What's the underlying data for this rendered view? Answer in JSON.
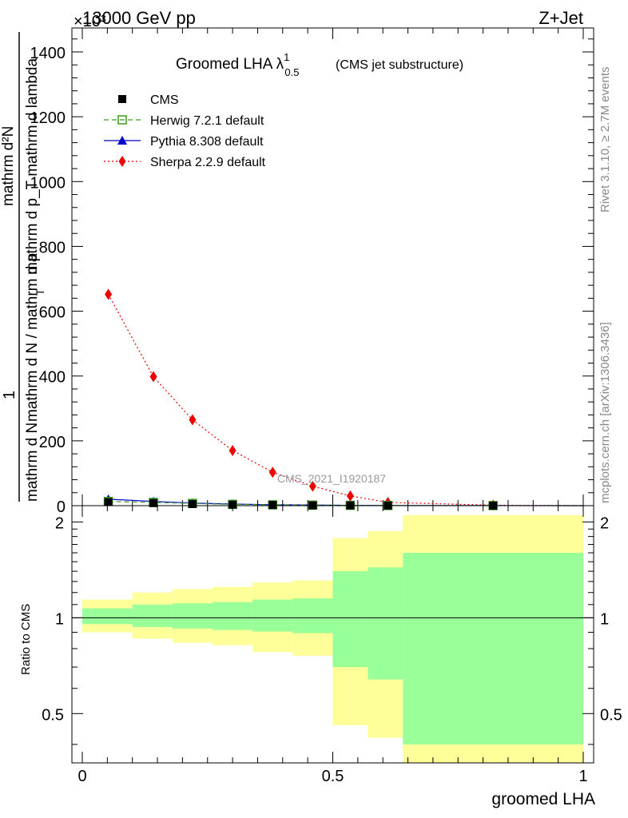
{
  "header": {
    "left_label": "13000 GeV pp",
    "right_label": "Z+Jet",
    "exponent_label": "×10³"
  },
  "side_labels": {
    "rivet": "Rivet 3.1.10, ≥ 2.7M events",
    "mcplots": "mcplots.cern.ch [arXiv:1306.3436]"
  },
  "watermark": "CMS_2021_I1920187",
  "chart_data": [
    {
      "type": "line",
      "title": "Groomed LHA λ",
      "title_sup": "1",
      "title_sub": "0.5",
      "subtitle": "(CMS jet substructure)",
      "ylabel": {
        "numerator_top": "1",
        "frac_num": "mathrm d N",
        "frac_den": "mathrm d N / mathrm d p",
        "frac_den_sub": "T",
        "frac_den_tail": "mathrm d lambda",
        "main_num": "mathrm d²N",
        "main_den": "mathrm d p_T mathrm d lambda"
      },
      "xlim": [
        0,
        1
      ],
      "ylim": [
        0,
        2.5
      ],
      "ytick_values": [
        0,
        0.2,
        0.4,
        0.6,
        0.8,
        1.0,
        1.2,
        1.4
      ],
      "ytick_labels": [
        "0",
        "200",
        "400",
        "600",
        "800",
        "1000",
        "1200",
        "1400"
      ],
      "x": [
        0.052,
        0.142,
        0.22,
        0.3,
        0.38,
        0.46,
        0.535,
        0.61,
        0.82
      ],
      "series": [
        {
          "name": "CMS",
          "marker": "square-filled",
          "color": "#000000",
          "style": "none",
          "values": [
            0.011,
            0.008,
            0.005,
            0.003,
            0.002,
            0.001,
            0.0008,
            0.0004,
            0.0002
          ]
        },
        {
          "name": "Herwig 7.2.1 default",
          "marker": "square-open",
          "color": "#3a9a1a",
          "style": "dashed",
          "values": [
            0.013,
            0.01,
            0.007,
            0.004,
            0.0025,
            0.0015,
            0.001,
            0.0005,
            0.0002
          ]
        },
        {
          "name": "Pythia 8.308 default",
          "marker": "triangle",
          "color": "#0000cc",
          "style": "solid",
          "values": [
            0.02,
            0.013,
            0.008,
            0.005,
            0.003,
            0.002,
            0.001,
            0.0006,
            0.0002
          ]
        },
        {
          "name": "Sherpa 2.2.9 default",
          "marker": "diamond",
          "color": "#ee0000",
          "style": "dotted",
          "values": [
            0.652,
            0.398,
            0.265,
            0.17,
            0.103,
            0.06,
            0.03,
            0.01,
            0.0015
          ]
        }
      ],
      "legend": "top-left"
    },
    {
      "type": "area",
      "ylabel": "Ratio to CMS",
      "xlabel": "groomed LHA",
      "xlim": [
        0,
        1
      ],
      "ylim": [
        0.35,
        2.25
      ],
      "ytick_labels": [
        "0.5",
        "1",
        "2"
      ],
      "ytick_values": [
        0.5,
        1,
        2
      ],
      "xtick_labels": [
        "0",
        "0.5",
        "1"
      ],
      "xtick_values": [
        0,
        0.5,
        1
      ],
      "reference_line": 1,
      "bin_edges": [
        0,
        0.1,
        0.18,
        0.26,
        0.34,
        0.42,
        0.5,
        0.57,
        0.64,
        1.0
      ],
      "bands": [
        {
          "name": "total uncertainty",
          "color": "#ffff99",
          "lower": [
            0.9,
            0.86,
            0.835,
            0.82,
            0.78,
            0.76,
            0.46,
            0.42,
            0.3
          ],
          "upper": [
            1.14,
            1.2,
            1.23,
            1.25,
            1.29,
            1.31,
            1.78,
            1.87,
            2.1
          ]
        },
        {
          "name": "statistical uncertainty",
          "color": "#99ff99",
          "lower": [
            0.955,
            0.935,
            0.925,
            0.915,
            0.905,
            0.895,
            0.7,
            0.64,
            0.4
          ],
          "upper": [
            1.07,
            1.1,
            1.11,
            1.12,
            1.14,
            1.15,
            1.4,
            1.44,
            1.6
          ]
        }
      ]
    }
  ]
}
